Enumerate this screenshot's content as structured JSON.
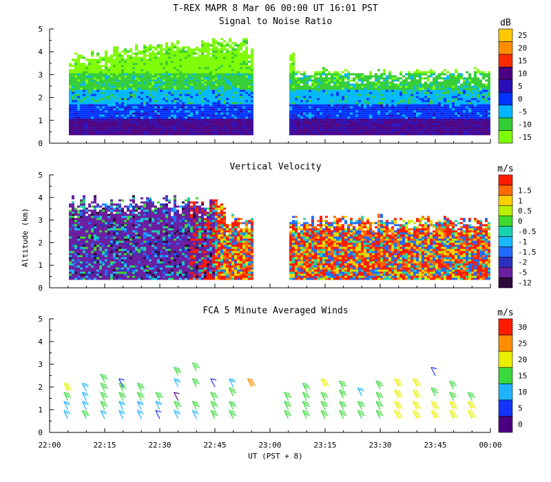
{
  "header": {
    "line1": "T-REX   MAPR   8 Mar 06   00:00 UT   16:01   PST"
  },
  "x_axis": {
    "label": "UT  (PST + 8)",
    "ticks": [
      "22:00",
      "22:15",
      "22:30",
      "22:45",
      "23:00",
      "23:15",
      "23:30",
      "23:45",
      "00:00"
    ]
  },
  "y_axis": {
    "label": "Altitude (km)",
    "ticks": [
      "0",
      "1",
      "2",
      "3",
      "4",
      "5"
    ]
  },
  "panels": [
    {
      "title": "Signal to Noise Ratio",
      "unit": "dB",
      "colorbar": [
        {
          "label": "-15",
          "color": "#7cfc00"
        },
        {
          "label": "-10",
          "color": "#32cd32"
        },
        {
          "label": "-5",
          "color": "#00b7ff"
        },
        {
          "label": "0",
          "color": "#0033ff"
        },
        {
          "label": "5",
          "color": "#2a0fb8"
        },
        {
          "label": "10",
          "color": "#4b0082"
        },
        {
          "label": "15",
          "color": "#ff2a00"
        },
        {
          "label": "20",
          "color": "#ff8c00"
        },
        {
          "label": "25",
          "color": "#ffc800"
        }
      ]
    },
    {
      "title": "Vertical Velocity",
      "unit": "m/s",
      "colorbar": [
        {
          "label": "-12",
          "color": "#2d0a3a"
        },
        {
          "label": "-5",
          "color": "#6a1fa0"
        },
        {
          "label": "-2",
          "color": "#2b2fc0"
        },
        {
          "label": "-1.5",
          "color": "#1f6bff"
        },
        {
          "label": "-1",
          "color": "#19b7ff"
        },
        {
          "label": "-0.5",
          "color": "#19d2b0"
        },
        {
          "label": "0",
          "color": "#3fd92a"
        },
        {
          "label": "0.5",
          "color": "#b8f000"
        },
        {
          "label": "1",
          "color": "#ffd000"
        },
        {
          "label": "1.5",
          "color": "#ff6a00"
        },
        {
          "label": "",
          "color": "#ff1a00"
        }
      ]
    },
    {
      "title": "FCA 5 Minute Averaged Winds",
      "unit": "m/s",
      "colorbar": [
        {
          "label": "0",
          "color": "#4b0082"
        },
        {
          "label": "5",
          "color": "#1433ff"
        },
        {
          "label": "10",
          "color": "#1fb3ff"
        },
        {
          "label": "15",
          "color": "#38d93a"
        },
        {
          "label": "20",
          "color": "#e8f000"
        },
        {
          "label": "25",
          "color": "#ff8c00"
        },
        {
          "label": "30",
          "color": "#ff1a00"
        }
      ]
    }
  ],
  "chart_data": [
    {
      "type": "heatmap",
      "title": "Signal to Noise Ratio",
      "units": "dB",
      "xlabel": "UT  (PST + 8)",
      "ylabel": "Altitude (km)",
      "ylim": [
        0,
        5
      ],
      "xlim": [
        "22:00",
        "00:00"
      ],
      "data_gaps": [
        [
          "22:55",
          "23:05"
        ]
      ],
      "echo_top_km": {
        "start": 3.6,
        "max": 4.5,
        "end": 3.3
      },
      "layers": [
        {
          "range_km": [
            0.3,
            1.0
          ],
          "dB": 10
        },
        {
          "range_km": [
            1.0,
            1.7
          ],
          "dB": 0
        },
        {
          "range_km": [
            1.7,
            2.3
          ],
          "dB": -5
        },
        {
          "range_km": [
            2.3,
            3.0
          ],
          "dB": -10
        },
        {
          "range_km": [
            3.0,
            4.5
          ],
          "dB": -15
        }
      ]
    },
    {
      "type": "heatmap",
      "title": "Vertical Velocity",
      "units": "m/s",
      "xlabel": "UT  (PST + 8)",
      "ylabel": "Altitude (km)",
      "ylim": [
        0,
        5
      ],
      "xlim": [
        "22:00",
        "00:00"
      ],
      "data_gaps": [
        [
          "22:55",
          "23:05"
        ]
      ],
      "segments": [
        {
          "time_range": [
            "22:00",
            "22:45"
          ],
          "dominant_ms": -5,
          "echo_top_km": 4.0
        },
        {
          "time_range": [
            "22:45",
            "22:55"
          ],
          "dominant_ms": 1.5,
          "echo_top_km": 3.3
        },
        {
          "time_range": [
            "23:05",
            "00:00"
          ],
          "dominant_ms": 1.0,
          "echo_top_km": 3.3
        }
      ]
    },
    {
      "type": "scatter",
      "title": "FCA 5 Minute Averaged Winds",
      "units": "m/s",
      "xlabel": "UT  (PST + 8)",
      "ylabel": "Altitude (km)",
      "ylim": [
        0,
        5
      ],
      "xlim": [
        "22:00",
        "00:00"
      ],
      "note": "wind barbs at 5-minute intervals; color encodes speed",
      "profiles": [
        {
          "time": "22:05",
          "barbs": [
            {
              "alt": 0.6,
              "speed": 10
            },
            {
              "alt": 1.0,
              "speed": 10
            },
            {
              "alt": 1.4,
              "speed": 15
            },
            {
              "alt": 1.8,
              "speed": 20
            }
          ]
        },
        {
          "time": "22:10",
          "barbs": [
            {
              "alt": 0.6,
              "speed": 15
            },
            {
              "alt": 1.0,
              "speed": 10
            },
            {
              "alt": 1.4,
              "speed": 10
            },
            {
              "alt": 1.8,
              "speed": 10
            }
          ]
        },
        {
          "time": "22:15",
          "barbs": [
            {
              "alt": 0.6,
              "speed": 10
            },
            {
              "alt": 1.0,
              "speed": 15
            },
            {
              "alt": 1.4,
              "speed": 15
            },
            {
              "alt": 1.8,
              "speed": 15
            },
            {
              "alt": 2.2,
              "speed": 15
            }
          ]
        },
        {
          "time": "22:20",
          "barbs": [
            {
              "alt": 0.6,
              "speed": 10
            },
            {
              "alt": 1.0,
              "speed": 10
            },
            {
              "alt": 1.4,
              "speed": 15
            },
            {
              "alt": 1.8,
              "speed": 15
            },
            {
              "alt": 2.0,
              "speed": 5
            }
          ]
        },
        {
          "time": "22:25",
          "barbs": [
            {
              "alt": 0.6,
              "speed": 10
            },
            {
              "alt": 1.0,
              "speed": 10
            },
            {
              "alt": 1.4,
              "speed": 15
            },
            {
              "alt": 1.8,
              "speed": 15
            }
          ]
        },
        {
          "time": "22:30",
          "barbs": [
            {
              "alt": 0.6,
              "speed": 5
            },
            {
              "alt": 1.0,
              "speed": 10
            },
            {
              "alt": 1.4,
              "speed": 15
            }
          ]
        },
        {
          "time": "22:35",
          "barbs": [
            {
              "alt": 0.6,
              "speed": 10
            },
            {
              "alt": 1.0,
              "speed": 15
            },
            {
              "alt": 1.4,
              "speed": 0
            },
            {
              "alt": 2.0,
              "speed": 10
            },
            {
              "alt": 2.5,
              "speed": 15
            }
          ]
        },
        {
          "time": "22:40",
          "barbs": [
            {
              "alt": 0.6,
              "speed": 10
            },
            {
              "alt": 1.0,
              "speed": 15
            },
            {
              "alt": 2.0,
              "speed": 15
            },
            {
              "alt": 2.7,
              "speed": 15
            }
          ]
        },
        {
          "time": "22:45",
          "barbs": [
            {
              "alt": 0.6,
              "speed": 15
            },
            {
              "alt": 1.0,
              "speed": 15
            },
            {
              "alt": 1.4,
              "speed": 15
            },
            {
              "alt": 2.0,
              "speed": 5
            }
          ]
        },
        {
          "time": "22:50",
          "barbs": [
            {
              "alt": 0.6,
              "speed": 15
            },
            {
              "alt": 1.0,
              "speed": 15
            },
            {
              "alt": 1.6,
              "speed": 15
            },
            {
              "alt": 2.0,
              "speed": 10
            }
          ]
        },
        {
          "time": "22:55",
          "barbs": [
            {
              "alt": 2.0,
              "speed": 25
            }
          ]
        },
        {
          "time": "23:05",
          "barbs": [
            {
              "alt": 0.6,
              "speed": 15
            },
            {
              "alt": 1.0,
              "speed": 15
            },
            {
              "alt": 1.4,
              "speed": 15
            }
          ]
        },
        {
          "time": "23:10",
          "barbs": [
            {
              "alt": 0.6,
              "speed": 15
            },
            {
              "alt": 1.0,
              "speed": 15
            },
            {
              "alt": 1.4,
              "speed": 15
            },
            {
              "alt": 1.8,
              "speed": 15
            }
          ]
        },
        {
          "time": "23:15",
          "barbs": [
            {
              "alt": 0.6,
              "speed": 15
            },
            {
              "alt": 1.0,
              "speed": 15
            },
            {
              "alt": 1.4,
              "speed": 15
            },
            {
              "alt": 2.0,
              "speed": 20
            }
          ]
        },
        {
          "time": "23:20",
          "barbs": [
            {
              "alt": 0.6,
              "speed": 15
            },
            {
              "alt": 1.0,
              "speed": 15
            },
            {
              "alt": 1.5,
              "speed": 15
            },
            {
              "alt": 1.9,
              "speed": 15
            }
          ]
        },
        {
          "time": "23:25",
          "barbs": [
            {
              "alt": 0.6,
              "speed": 15
            },
            {
              "alt": 1.0,
              "speed": 15
            },
            {
              "alt": 1.6,
              "speed": 10
            }
          ]
        },
        {
          "time": "23:30",
          "barbs": [
            {
              "alt": 0.6,
              "speed": 15
            },
            {
              "alt": 1.0,
              "speed": 15
            },
            {
              "alt": 1.4,
              "speed": 15
            },
            {
              "alt": 1.9,
              "speed": 15
            }
          ]
        },
        {
          "time": "23:35",
          "barbs": [
            {
              "alt": 0.6,
              "speed": 20
            },
            {
              "alt": 1.0,
              "speed": 20
            },
            {
              "alt": 1.5,
              "speed": 20
            },
            {
              "alt": 2.0,
              "speed": 20
            }
          ]
        },
        {
          "time": "23:40",
          "barbs": [
            {
              "alt": 0.6,
              "speed": 20
            },
            {
              "alt": 1.0,
              "speed": 20
            },
            {
              "alt": 1.5,
              "speed": 20
            },
            {
              "alt": 2.0,
              "speed": 20
            }
          ]
        },
        {
          "time": "23:45",
          "barbs": [
            {
              "alt": 0.6,
              "speed": 20
            },
            {
              "alt": 1.0,
              "speed": 20
            },
            {
              "alt": 1.6,
              "speed": 15
            },
            {
              "alt": 2.5,
              "speed": 5
            }
          ]
        },
        {
          "time": "23:50",
          "barbs": [
            {
              "alt": 0.6,
              "speed": 20
            },
            {
              "alt": 1.0,
              "speed": 20
            },
            {
              "alt": 1.4,
              "speed": 15
            },
            {
              "alt": 1.9,
              "speed": 15
            }
          ]
        },
        {
          "time": "23:55",
          "barbs": [
            {
              "alt": 0.6,
              "speed": 20
            },
            {
              "alt": 1.0,
              "speed": 20
            },
            {
              "alt": 1.4,
              "speed": 15
            }
          ]
        }
      ]
    }
  ]
}
